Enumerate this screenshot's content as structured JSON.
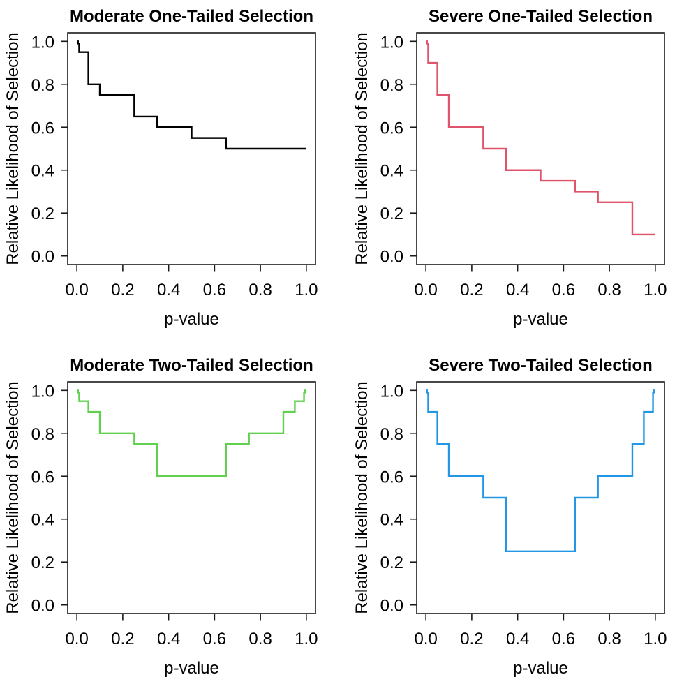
{
  "figure": {
    "background": "#ffffff",
    "axis_color": "#1a1a1a",
    "layout": "2x2 grid of step-function plots"
  },
  "chart_data": [
    {
      "type": "line",
      "subtype": "step",
      "id": "moderate-one-tailed",
      "title": "Moderate One-Tailed Selection",
      "xlabel": "p-value",
      "ylabel": "Relative Likelihood of Selection",
      "color": "#000000",
      "xlim": [
        0,
        1
      ],
      "ylim": [
        0,
        1
      ],
      "grid": false,
      "legend": "none",
      "xticks": [
        "0.0",
        "0.2",
        "0.4",
        "0.6",
        "0.8",
        "1.0"
      ],
      "yticks": [
        "0.0",
        "0.2",
        "0.4",
        "0.6",
        "0.8",
        "1.0"
      ],
      "p_cutpoints": [
        0,
        0.005,
        0.01,
        0.05,
        0.1,
        0.25,
        0.35,
        0.5,
        0.65,
        0.75,
        0.9,
        0.95,
        0.99,
        0.995,
        1
      ],
      "weights": [
        1.0,
        0.99,
        0.95,
        0.8,
        0.75,
        0.65,
        0.6,
        0.55,
        0.5,
        0.5,
        0.5,
        0.5,
        0.5,
        0.5
      ]
    },
    {
      "type": "line",
      "subtype": "step",
      "id": "severe-one-tailed",
      "title": "Severe One-Tailed Selection",
      "xlabel": "p-value",
      "ylabel": "Relative Likelihood of Selection",
      "color": "#DF536B",
      "xlim": [
        0,
        1
      ],
      "ylim": [
        0,
        1
      ],
      "grid": false,
      "legend": "none",
      "xticks": [
        "0.0",
        "0.2",
        "0.4",
        "0.6",
        "0.8",
        "1.0"
      ],
      "yticks": [
        "0.0",
        "0.2",
        "0.4",
        "0.6",
        "0.8",
        "1.0"
      ],
      "p_cutpoints": [
        0,
        0.005,
        0.01,
        0.05,
        0.1,
        0.25,
        0.35,
        0.5,
        0.65,
        0.75,
        0.9,
        0.95,
        0.99,
        0.995,
        1
      ],
      "weights": [
        1.0,
        0.99,
        0.9,
        0.75,
        0.6,
        0.5,
        0.4,
        0.35,
        0.3,
        0.25,
        0.1,
        0.1,
        0.1,
        0.1
      ]
    },
    {
      "type": "line",
      "subtype": "step",
      "id": "moderate-two-tailed",
      "title": "Moderate Two-Tailed Selection",
      "xlabel": "p-value",
      "ylabel": "Relative Likelihood of Selection",
      "color": "#61D04F",
      "xlim": [
        0,
        1
      ],
      "ylim": [
        0,
        1
      ],
      "grid": false,
      "legend": "none",
      "xticks": [
        "0.0",
        "0.2",
        "0.4",
        "0.6",
        "0.8",
        "1.0"
      ],
      "yticks": [
        "0.0",
        "0.2",
        "0.4",
        "0.6",
        "0.8",
        "1.0"
      ],
      "p_cutpoints": [
        0,
        0.005,
        0.01,
        0.05,
        0.1,
        0.25,
        0.35,
        0.5,
        0.65,
        0.75,
        0.9,
        0.95,
        0.99,
        0.995,
        1
      ],
      "weights": [
        1.0,
        0.99,
        0.95,
        0.9,
        0.8,
        0.75,
        0.6,
        0.6,
        0.75,
        0.8,
        0.9,
        0.95,
        0.99,
        1.0
      ]
    },
    {
      "type": "line",
      "subtype": "step",
      "id": "severe-two-tailed",
      "title": "Severe Two-Tailed Selection",
      "xlabel": "p-value",
      "ylabel": "Relative Likelihood of Selection",
      "color": "#2297E6",
      "xlim": [
        0,
        1
      ],
      "ylim": [
        0,
        1
      ],
      "grid": false,
      "legend": "none",
      "xticks": [
        "0.0",
        "0.2",
        "0.4",
        "0.6",
        "0.8",
        "1.0"
      ],
      "yticks": [
        "0.0",
        "0.2",
        "0.4",
        "0.6",
        "0.8",
        "1.0"
      ],
      "p_cutpoints": [
        0,
        0.005,
        0.01,
        0.05,
        0.1,
        0.25,
        0.35,
        0.5,
        0.65,
        0.75,
        0.9,
        0.95,
        0.99,
        0.995,
        1
      ],
      "weights": [
        1.0,
        0.99,
        0.9,
        0.75,
        0.6,
        0.5,
        0.25,
        0.25,
        0.5,
        0.6,
        0.75,
        0.9,
        0.99,
        1.0
      ]
    }
  ]
}
